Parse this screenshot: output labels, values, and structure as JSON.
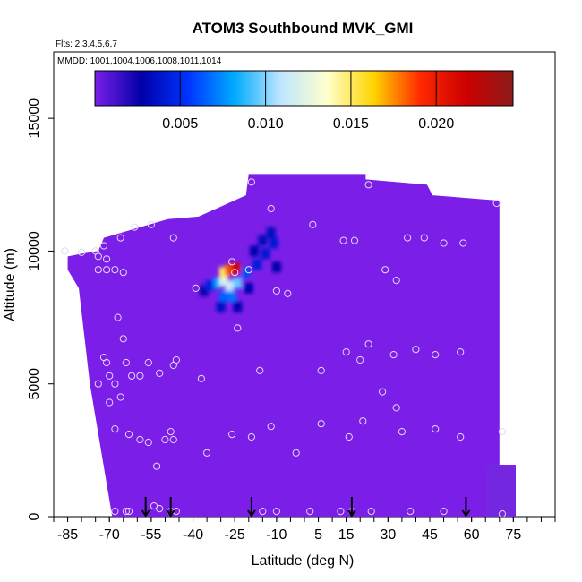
{
  "chart_data": {
    "type": "heatmap",
    "title": "ATOM3 Southbound MVK_GMI",
    "flights_label": "Flts: 2,3,4,5,6,7",
    "dates_label": "MMDD: 1001,1004,1006,1008,1011,1014",
    "xlabel": "Latitude (deg N)",
    "ylabel": "Altitude (m)",
    "xlim": [
      -90,
      90
    ],
    "ylim": [
      0,
      17500
    ],
    "x_ticks": [
      -85,
      -70,
      -55,
      -40,
      -25,
      -10,
      5,
      15,
      30,
      45,
      60,
      75
    ],
    "x_tick_labels": [
      "-85",
      "-70",
      "-55",
      "-40",
      "-25",
      "-10",
      "5",
      "15",
      "30",
      "45",
      "60",
      "75"
    ],
    "y_ticks": [
      0,
      5000,
      10000,
      15000
    ],
    "y_tick_labels": [
      "0",
      "5000",
      "10000",
      "15000"
    ],
    "colorbar": {
      "range": [
        0.0,
        0.0245
      ],
      "ticks": [
        0.005,
        0.01,
        0.015,
        0.02
      ],
      "tick_labels": [
        "0.005",
        "0.010",
        "0.015",
        "0.020"
      ],
      "colors": [
        "#7b1fe8",
        "#0000a8",
        "#0033ff",
        "#00aaff",
        "#bfe6ff",
        "#ffffcc",
        "#ffd400",
        "#ff2a00",
        "#cc0000",
        "#8b1a1a"
      ]
    },
    "background_value": 0.0002,
    "domain_outline": [
      [
        -85,
        9800
      ],
      [
        -80,
        9900
      ],
      [
        -74,
        10000
      ],
      [
        -72,
        10500
      ],
      [
        -59,
        10900
      ],
      [
        -49,
        11200
      ],
      [
        -38,
        11300
      ],
      [
        -21,
        12100
      ],
      [
        -20,
        12900
      ],
      [
        22,
        12900
      ],
      [
        22,
        12700
      ],
      [
        44,
        12500
      ],
      [
        46,
        12100
      ],
      [
        70,
        11900
      ],
      [
        70,
        0
      ],
      [
        -69,
        0
      ],
      [
        -77,
        5000
      ],
      [
        -81,
        8600
      ],
      [
        -85,
        9300
      ]
    ],
    "plume": [
      {
        "lat": -24.5,
        "alt": 9350,
        "value": 0.0215
      },
      {
        "lat": -27.0,
        "alt": 9300,
        "value": 0.0185
      },
      {
        "lat": -29.0,
        "alt": 9200,
        "value": 0.015
      },
      {
        "lat": -29.0,
        "alt": 8900,
        "value": 0.012
      },
      {
        "lat": -27.0,
        "alt": 8700,
        "value": 0.011
      },
      {
        "lat": -24.0,
        "alt": 8800,
        "value": 0.0095
      },
      {
        "lat": -31.0,
        "alt": 8800,
        "value": 0.008
      },
      {
        "lat": -26.0,
        "alt": 8300,
        "value": 0.007
      },
      {
        "lat": -29.0,
        "alt": 8300,
        "value": 0.0065
      },
      {
        "lat": -21.0,
        "alt": 9200,
        "value": 0.006
      },
      {
        "lat": -34.0,
        "alt": 8700,
        "value": 0.0045
      },
      {
        "lat": -17.0,
        "alt": 9500,
        "value": 0.0042
      },
      {
        "lat": -14.0,
        "alt": 9900,
        "value": 0.004
      },
      {
        "lat": -11.0,
        "alt": 10300,
        "value": 0.004
      },
      {
        "lat": -12.0,
        "alt": 10700,
        "value": 0.0035
      },
      {
        "lat": -15.0,
        "alt": 10400,
        "value": 0.0032
      },
      {
        "lat": -18.0,
        "alt": 10000,
        "value": 0.003
      },
      {
        "lat": -10.0,
        "alt": 9400,
        "value": 0.0028
      },
      {
        "lat": -20.0,
        "alt": 8600,
        "value": 0.003
      },
      {
        "lat": -30.0,
        "alt": 7900,
        "value": 0.0035
      },
      {
        "lat": -24.0,
        "alt": 7900,
        "value": 0.003
      },
      {
        "lat": -36.0,
        "alt": 8500,
        "value": 0.0025
      }
    ],
    "observation_points": [
      [
        -86,
        10000
      ],
      [
        -80,
        9950
      ],
      [
        -75,
        10000
      ],
      [
        -74,
        9800
      ],
      [
        -74,
        9300
      ],
      [
        -72,
        10200
      ],
      [
        -71,
        9700
      ],
      [
        -71,
        9300
      ],
      [
        -66,
        10500
      ],
      [
        -68,
        9300
      ],
      [
        -65,
        9200
      ],
      [
        -61,
        10900
      ],
      [
        -55,
        11000
      ],
      [
        -47,
        10500
      ],
      [
        -19,
        12600
      ],
      [
        -12,
        11600
      ],
      [
        3,
        11000
      ],
      [
        14,
        10400
      ],
      [
        18,
        10400
      ],
      [
        23,
        12500
      ],
      [
        37,
        10500
      ],
      [
        43,
        10500
      ],
      [
        50,
        10300
      ],
      [
        57,
        10300
      ],
      [
        69,
        11800
      ],
      [
        -39,
        8600
      ],
      [
        -26,
        9600
      ],
      [
        -25,
        9200
      ],
      [
        -20,
        9300
      ],
      [
        -10,
        8500
      ],
      [
        -6,
        8400
      ],
      [
        29,
        9300
      ],
      [
        33,
        8900
      ],
      [
        -24,
        7100
      ],
      [
        -67,
        7500
      ],
      [
        -65,
        6700
      ],
      [
        -72,
        6000
      ],
      [
        -71,
        5800
      ],
      [
        -64,
        5800
      ],
      [
        -56,
        5800
      ],
      [
        -46,
        5900
      ],
      [
        -47,
        5700
      ],
      [
        -52,
        5400
      ],
      [
        -70,
        5300
      ],
      [
        -68,
        5000
      ],
      [
        -62,
        5300
      ],
      [
        -59,
        5300
      ],
      [
        -74,
        5000
      ],
      [
        -37,
        5200
      ],
      [
        -16,
        5500
      ],
      [
        6,
        5500
      ],
      [
        15,
        6200
      ],
      [
        20,
        5900
      ],
      [
        23,
        6500
      ],
      [
        32,
        6100
      ],
      [
        40,
        6300
      ],
      [
        47,
        6100
      ],
      [
        56,
        6200
      ],
      [
        -66,
        4500
      ],
      [
        -70,
        4300
      ],
      [
        -68,
        3300
      ],
      [
        -63,
        3100
      ],
      [
        -59,
        2900
      ],
      [
        -56,
        2800
      ],
      [
        -50,
        2900
      ],
      [
        -48,
        3200
      ],
      [
        -47,
        2900
      ],
      [
        -35,
        2400
      ],
      [
        -26,
        3100
      ],
      [
        -19,
        3000
      ],
      [
        -12,
        3400
      ],
      [
        -3,
        2400
      ],
      [
        6,
        3500
      ],
      [
        16,
        3000
      ],
      [
        21,
        3600
      ],
      [
        28,
        4700
      ],
      [
        33,
        4100
      ],
      [
        35,
        3200
      ],
      [
        47,
        3300
      ],
      [
        56,
        3000
      ],
      [
        71,
        3200
      ],
      [
        -53,
        1900
      ],
      [
        -68,
        200
      ],
      [
        -64,
        200
      ],
      [
        -63,
        200
      ],
      [
        -54,
        400
      ],
      [
        -52,
        300
      ],
      [
        -48,
        200
      ],
      [
        -46,
        200
      ],
      [
        -15,
        200
      ],
      [
        -10,
        200
      ],
      [
        2,
        200
      ],
      [
        13,
        200
      ],
      [
        17,
        200
      ],
      [
        24,
        200
      ],
      [
        38,
        200
      ],
      [
        50,
        200
      ],
      [
        71,
        100
      ]
    ],
    "flight_markers": [
      -57,
      -48,
      -19,
      17,
      58
    ]
  }
}
